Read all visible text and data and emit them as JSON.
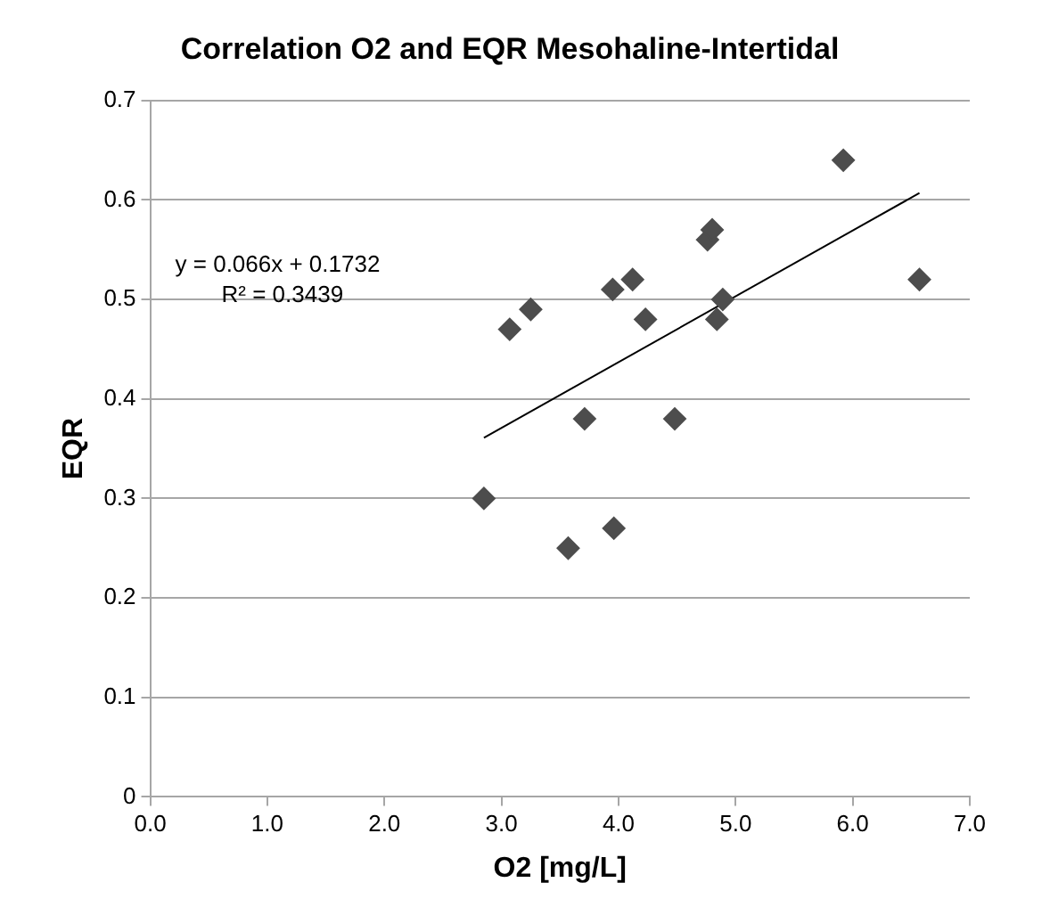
{
  "chart_data": {
    "type": "scatter",
    "title": "Correlation O2 and EQR Mesohaline-Intertidal",
    "xlabel": "O2 [mg/L]",
    "ylabel": "EQR",
    "series": [
      {
        "color": "#4d4d4d",
        "marker": "diamond",
        "x": [
          2.85,
          3.07,
          3.25,
          3.57,
          3.71,
          3.95,
          3.96,
          4.12,
          4.23,
          4.48,
          4.76,
          4.8,
          4.84,
          4.89,
          5.92,
          6.57
        ],
        "values": [
          0.3,
          0.47,
          0.49,
          0.25,
          0.38,
          0.51,
          0.27,
          0.52,
          0.48,
          0.38,
          0.56,
          0.57,
          0.48,
          0.5,
          0.64,
          0.52
        ]
      },
      {
        "type": "line",
        "color": "#000000",
        "marker": "none",
        "x": [
          2.85,
          6.57
        ],
        "values": [
          0.361,
          0.607
        ]
      }
    ],
    "annotations": [
      "y = 0.066x + 0.1732",
      "R² = 0.3439"
    ],
    "xlim": [
      0,
      7
    ],
    "xticks": [
      {
        "value": 0,
        "label": "0.0"
      },
      {
        "value": 1,
        "label": "1.0"
      },
      {
        "value": 2,
        "label": "2.0"
      },
      {
        "value": 3,
        "label": "3.0"
      },
      {
        "value": 4,
        "label": "4.0"
      },
      {
        "value": 5,
        "label": "5.0"
      },
      {
        "value": 6,
        "label": "6.0"
      },
      {
        "value": 7,
        "label": "7.0"
      }
    ],
    "ylim": [
      0,
      0.7
    ],
    "yticks": [
      0,
      0.1,
      0.2,
      0.3,
      0.4,
      0.5,
      0.6,
      0.7
    ],
    "grid": "y",
    "legend": false
  }
}
